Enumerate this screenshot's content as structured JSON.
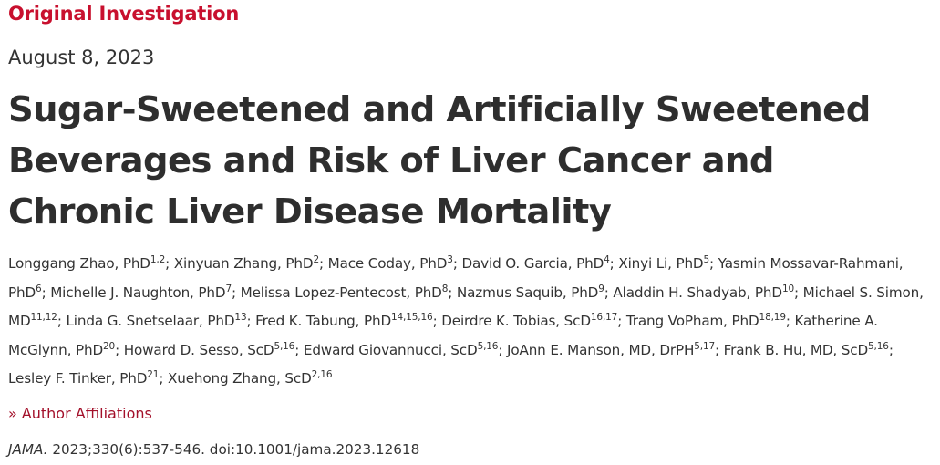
{
  "article": {
    "type": "Original Investigation",
    "date": "August 8, 2023",
    "title": "Sugar-Sweetened and Artificially Sweetened Beverages and Risk of Liver Cancer and Chronic Liver Disease Mortality"
  },
  "authors": [
    {
      "name": "Longgang Zhao, PhD",
      "sup": "1,2"
    },
    {
      "name": "Xinyuan Zhang, PhD",
      "sup": "2"
    },
    {
      "name": "Mace Coday, PhD",
      "sup": "3"
    },
    {
      "name": "David O. Garcia, PhD",
      "sup": "4"
    },
    {
      "name": "Xinyi Li, PhD",
      "sup": "5"
    },
    {
      "name": "Yasmin Mossavar-Rahmani, PhD",
      "sup": "6"
    },
    {
      "name": "Michelle J. Naughton, PhD",
      "sup": "7"
    },
    {
      "name": "Melissa Lopez-Pentecost, PhD",
      "sup": "8"
    },
    {
      "name": "Nazmus Saquib, PhD",
      "sup": "9"
    },
    {
      "name": "Aladdin H. Shadyab, PhD",
      "sup": "10"
    },
    {
      "name": "Michael S. Simon, MD",
      "sup": "11,12"
    },
    {
      "name": "Linda G. Snetselaar, PhD",
      "sup": "13"
    },
    {
      "name": "Fred K. Tabung, PhD",
      "sup": "14,15,16"
    },
    {
      "name": "Deirdre K. Tobias, ScD",
      "sup": "16,17"
    },
    {
      "name": "Trang VoPham, PhD",
      "sup": "18,19"
    },
    {
      "name": "Katherine A. McGlynn, PhD",
      "sup": "20"
    },
    {
      "name": "Howard D. Sesso, ScD",
      "sup": "5,16"
    },
    {
      "name": "Edward Giovannucci, ScD",
      "sup": "5,16"
    },
    {
      "name": "JoAnn E. Manson, MD, DrPH",
      "sup": "5,17"
    },
    {
      "name": "Frank B. Hu, MD, ScD",
      "sup": "5,16"
    },
    {
      "name": "Lesley F. Tinker, PhD",
      "sup": "21"
    },
    {
      "name": "Xuehong Zhang, ScD",
      "sup": "2,16"
    }
  ],
  "affiliations": {
    "chevron_glyph": "»",
    "label": "Author Affiliations",
    "icon": "double-chevron-right-icon"
  },
  "citation": {
    "journal": "JAMA.",
    "details": "2023;330(6):537-546. doi:10.1001/jama.2023.12618"
  },
  "colors": {
    "accent": "#c8102e",
    "link": "#a3102a",
    "text": "#333333",
    "title": "#2e2e2e"
  }
}
